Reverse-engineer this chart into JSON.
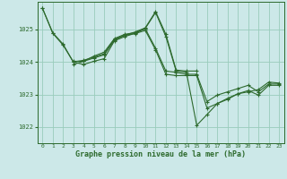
{
  "background_color": "#cce8e8",
  "plot_bg_color": "#cce8e8",
  "grid_color": "#99ccbb",
  "line_color": "#2d6a2d",
  "ylim": [
    1021.5,
    1025.85
  ],
  "xlim": [
    -0.5,
    23.5
  ],
  "yticks": [
    1022,
    1023,
    1024,
    1025
  ],
  "xticks": [
    0,
    1,
    2,
    3,
    4,
    5,
    6,
    7,
    8,
    9,
    10,
    11,
    12,
    13,
    14,
    15,
    16,
    17,
    18,
    19,
    20,
    21,
    22,
    23
  ],
  "xlabel": "Graphe pression niveau de la mer (hPa)",
  "lines": [
    {
      "x": [
        0,
        1,
        2,
        3,
        4,
        5,
        6,
        7,
        8,
        9,
        10,
        11,
        12,
        13,
        14,
        15
      ],
      "y": [
        1025.65,
        1024.9,
        1024.55,
        1024.0,
        1024.05,
        1024.15,
        1024.25,
        1024.7,
        1024.82,
        1024.92,
        1025.05,
        1025.55,
        1024.85,
        1023.75,
        1023.72,
        1023.72
      ]
    },
    {
      "x": [
        0,
        1,
        2,
        3,
        4,
        5,
        6,
        7,
        8,
        9,
        10,
        11,
        12,
        13,
        14,
        15,
        16,
        17,
        18,
        19,
        20,
        21,
        22,
        23
      ],
      "y": [
        1025.65,
        1024.88,
        1024.52,
        1024.0,
        1023.92,
        1024.02,
        1024.1,
        1024.65,
        1024.78,
        1024.88,
        1025.03,
        1025.52,
        1024.78,
        1023.72,
        1023.68,
        1022.05,
        1022.38,
        1022.72,
        1022.85,
        1023.02,
        1023.08,
        1023.15,
        1023.38,
        1023.35
      ]
    },
    {
      "x": [
        3,
        4,
        5,
        6,
        7,
        8,
        9,
        10,
        11,
        12,
        13,
        14,
        15,
        16,
        17,
        18,
        19,
        20,
        21,
        22,
        23
      ],
      "y": [
        1023.92,
        1024.02,
        1024.18,
        1024.3,
        1024.72,
        1024.85,
        1024.9,
        1025.02,
        1024.42,
        1023.72,
        1023.68,
        1023.62,
        1023.62,
        1022.78,
        1022.98,
        1023.08,
        1023.18,
        1023.28,
        1023.08,
        1023.32,
        1023.32
      ]
    },
    {
      "x": [
        3,
        4,
        5,
        6,
        7,
        8,
        9,
        10,
        11,
        12,
        13,
        14,
        15,
        16,
        17,
        18,
        19,
        20,
        21,
        22,
        23
      ],
      "y": [
        1024.02,
        1024.02,
        1024.12,
        1024.22,
        1024.67,
        1024.82,
        1024.87,
        1024.97,
        1024.37,
        1023.62,
        1023.58,
        1023.58,
        1023.58,
        1022.58,
        1022.72,
        1022.88,
        1023.02,
        1023.12,
        1022.98,
        1023.28,
        1023.28
      ]
    }
  ]
}
